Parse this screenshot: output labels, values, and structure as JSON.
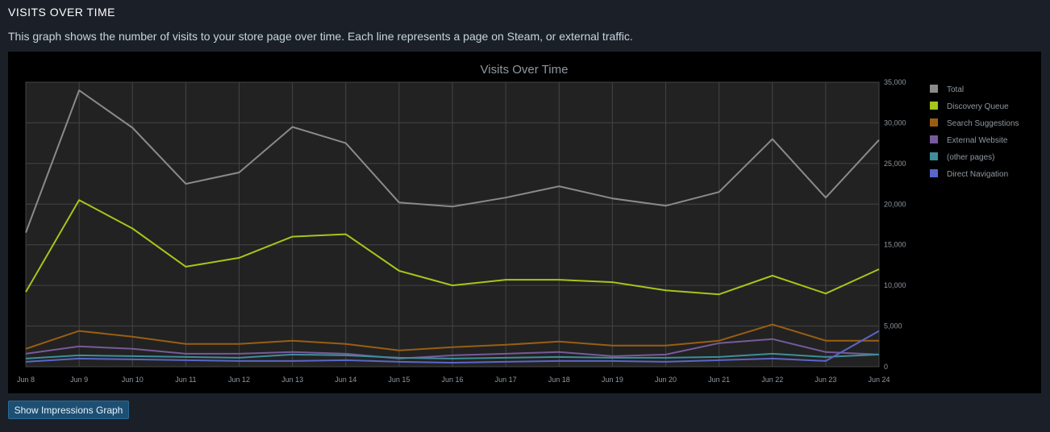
{
  "page": {
    "section_title": "VISITS OVER TIME",
    "description": "This graph shows the number of visits to your store page over time. Each line represents a page on Steam, or external traffic.",
    "button_label": "Show Impressions Graph"
  },
  "chart_data": {
    "type": "line",
    "title": "Visits Over Time",
    "xlabel": "",
    "ylabel": "",
    "categories": [
      "Jun 8",
      "Jun 9",
      "Jun 10",
      "Jun 11",
      "Jun 12",
      "Jun 13",
      "Jun 14",
      "Jun 15",
      "Jun 16",
      "Jun 17",
      "Jun 18",
      "Jun 19",
      "Jun 20",
      "Jun 21",
      "Jun 22",
      "Jun 23",
      "Jun 24"
    ],
    "ylim": [
      0,
      35000
    ],
    "yticks": [
      0,
      5000,
      10000,
      15000,
      20000,
      25000,
      30000,
      35000
    ],
    "ytick_labels": [
      "0",
      "5,000",
      "10,000",
      "15,000",
      "20,000",
      "25,000",
      "30,000",
      "35,000"
    ],
    "grid": true,
    "legend_position": "right",
    "series": [
      {
        "name": "Total",
        "color": "#8a8a8a",
        "values": [
          16500,
          34000,
          29400,
          22500,
          23900,
          29500,
          27500,
          20200,
          19700,
          20800,
          22200,
          20700,
          19800,
          21500,
          28000,
          20800,
          27900
        ]
      },
      {
        "name": "Discovery Queue",
        "color": "#a4c61a",
        "values": [
          9200,
          20500,
          17000,
          12300,
          13400,
          16000,
          16300,
          11800,
          10000,
          10700,
          10700,
          10400,
          9400,
          8900,
          11200,
          9000,
          12000
        ]
      },
      {
        "name": "Search Suggestions",
        "color": "#9a5e12",
        "values": [
          2200,
          4400,
          3700,
          2800,
          2800,
          3200,
          2800,
          2000,
          2400,
          2700,
          3100,
          2600,
          2600,
          3200,
          5200,
          3200,
          3200
        ]
      },
      {
        "name": "External Website",
        "color": "#775a9a",
        "values": [
          1600,
          2500,
          2200,
          1600,
          1600,
          1800,
          1600,
          1000,
          1400,
          1600,
          1800,
          1300,
          1500,
          2900,
          3400,
          1800,
          1500
        ]
      },
      {
        "name": "(other pages)",
        "color": "#3e8e9a",
        "values": [
          1000,
          1400,
          1300,
          1200,
          1100,
          1500,
          1400,
          1100,
          1000,
          1100,
          1200,
          1100,
          1100,
          1200,
          1600,
          1200,
          1500
        ]
      },
      {
        "name": "Direct Navigation",
        "color": "#5a66c8",
        "values": [
          600,
          1000,
          900,
          800,
          700,
          700,
          800,
          600,
          500,
          600,
          700,
          700,
          600,
          800,
          1000,
          700,
          4400
        ]
      }
    ]
  }
}
